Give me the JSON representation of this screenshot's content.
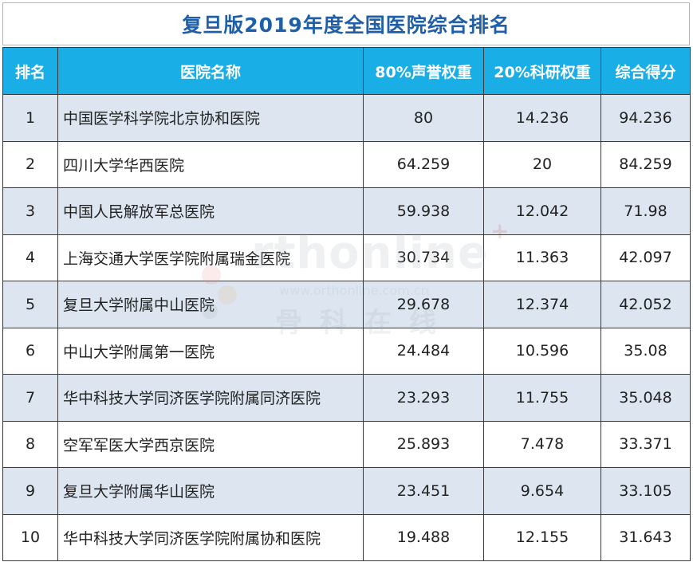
{
  "title": "复旦版2019年度全国医院综合排名",
  "headers": {
    "rank": "排名",
    "name": "医院名称",
    "reputation": "80%声誉权重",
    "research": "20%科研权重",
    "total": "综合得分"
  },
  "rows": [
    {
      "rank": "1",
      "name": "中国医学科学院北京协和医院",
      "reputation": "80",
      "research": "14.236",
      "total": "94.236"
    },
    {
      "rank": "2",
      "name": "四川大学华西医院",
      "reputation": "64.259",
      "research": "20",
      "total": "84.259"
    },
    {
      "rank": "3",
      "name": "中国人民解放军总医院",
      "reputation": "59.938",
      "research": "12.042",
      "total": "71.98"
    },
    {
      "rank": "4",
      "name": "上海交通大学医学院附属瑞金医院",
      "reputation": "30.734",
      "research": "11.363",
      "total": "42.097"
    },
    {
      "rank": "5",
      "name": "复旦大学附属中山医院",
      "reputation": "29.678",
      "research": "12.374",
      "total": "42.052"
    },
    {
      "rank": "6",
      "name": "中山大学附属第一医院",
      "reputation": "24.484",
      "research": "10.596",
      "total": "35.08"
    },
    {
      "rank": "7",
      "name": "华中科技大学同济医学院附属同济医院",
      "reputation": "23.293",
      "research": "11.755",
      "total": "35.048"
    },
    {
      "rank": "8",
      "name": "空军军医大学西京医院",
      "reputation": "25.893",
      "research": "7.478",
      "total": "33.371"
    },
    {
      "rank": "9",
      "name": "复旦大学附属华山医院",
      "reputation": "23.451",
      "research": "9.654",
      "total": "33.105"
    },
    {
      "rank": "10",
      "name": "华中科技大学同济医学院附属协和医院",
      "reputation": "19.488",
      "research": "12.155",
      "total": "31.643"
    }
  ],
  "watermark": {
    "main": "rthonline",
    "plus": "+",
    "url": "www.orthonline.com.cn",
    "cn": "骨科在线"
  },
  "colors": {
    "title_text": "#1f5fa8",
    "header_bg": "#1aaee6",
    "header_text": "#ffffff",
    "stripe_bg": "#dde6f0",
    "watermark_plus": "#e03030"
  }
}
